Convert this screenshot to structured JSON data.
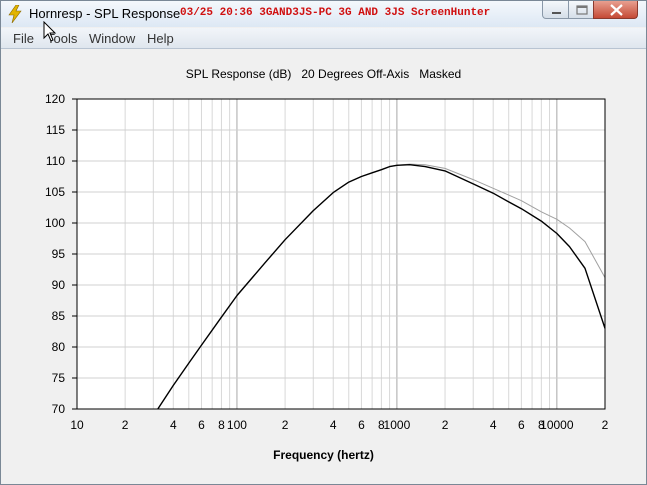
{
  "window": {
    "title": "Hornresp - SPL Response",
    "overlay_text": "03/25  20:36  3GAND3JS-PC  3G AND 3JS  ScreenHunter",
    "overlay_color": "#d01010"
  },
  "menu": {
    "items": [
      {
        "label": "File"
      },
      {
        "label": "Tools"
      },
      {
        "label": "Window"
      },
      {
        "label": "Help"
      }
    ]
  },
  "chart_data": {
    "type": "line",
    "title": "SPL Response (dB)   20 Degrees Off-Axis   Masked",
    "xlabel": "Frequency (hertz)",
    "ylabel": "",
    "xscale": "log",
    "xlim": [
      10,
      20000
    ],
    "ylim": [
      70,
      120
    ],
    "grid": true,
    "yticks": [
      "70",
      "75",
      "80",
      "85",
      "90",
      "95",
      "100",
      "105",
      "110",
      "115",
      "120"
    ],
    "xticks": [
      {
        "value": 10,
        "label": "10"
      },
      {
        "value": 20,
        "label": "2"
      },
      {
        "value": 40,
        "label": "4"
      },
      {
        "value": 60,
        "label": "6"
      },
      {
        "value": 80,
        "label": "8"
      },
      {
        "value": 100,
        "label": "100"
      },
      {
        "value": 200,
        "label": "2"
      },
      {
        "value": 400,
        "label": "4"
      },
      {
        "value": 600,
        "label": "6"
      },
      {
        "value": 800,
        "label": "8"
      },
      {
        "value": 1000,
        "label": "1000"
      },
      {
        "value": 2000,
        "label": "2"
      },
      {
        "value": 4000,
        "label": "4"
      },
      {
        "value": 6000,
        "label": "6"
      },
      {
        "value": 8000,
        "label": "8"
      },
      {
        "value": 10000,
        "label": "10000"
      },
      {
        "value": 20000,
        "label": "2"
      }
    ],
    "series": [
      {
        "color": "#000000",
        "x": [
          32,
          40,
          50,
          60,
          80,
          100,
          150,
          200,
          300,
          400,
          500,
          600,
          700,
          800,
          900,
          1000,
          1200,
          1500,
          2000,
          3000,
          4000,
          5000,
          6000,
          8000,
          10000,
          12000,
          15000,
          20000
        ],
        "y": [
          70,
          73.8,
          77.4,
          80.3,
          84.8,
          88.3,
          93.6,
          97.3,
          102.0,
          104.9,
          106.6,
          107.5,
          108.1,
          108.6,
          109.1,
          109.3,
          109.4,
          109.1,
          108.4,
          106.3,
          104.8,
          103.4,
          102.3,
          100.3,
          98.3,
          96.2,
          92.7,
          83.0
        ]
      },
      {
        "color": "#a0a0a0",
        "x": [
          32,
          40,
          50,
          60,
          80,
          100,
          150,
          200,
          300,
          400,
          500,
          600,
          700,
          800,
          900,
          1000,
          1200,
          1500,
          2000,
          3000,
          4000,
          5000,
          6000,
          8000,
          10000,
          12000,
          15000,
          20000
        ],
        "y": [
          70,
          73.8,
          77.4,
          80.3,
          84.8,
          88.3,
          93.6,
          97.3,
          102.0,
          104.9,
          106.6,
          107.5,
          108.1,
          108.6,
          109.1,
          109.3,
          109.5,
          109.4,
          108.8,
          107.0,
          105.6,
          104.5,
          103.6,
          101.8,
          100.6,
          99.2,
          97.0,
          91.2
        ]
      }
    ]
  }
}
